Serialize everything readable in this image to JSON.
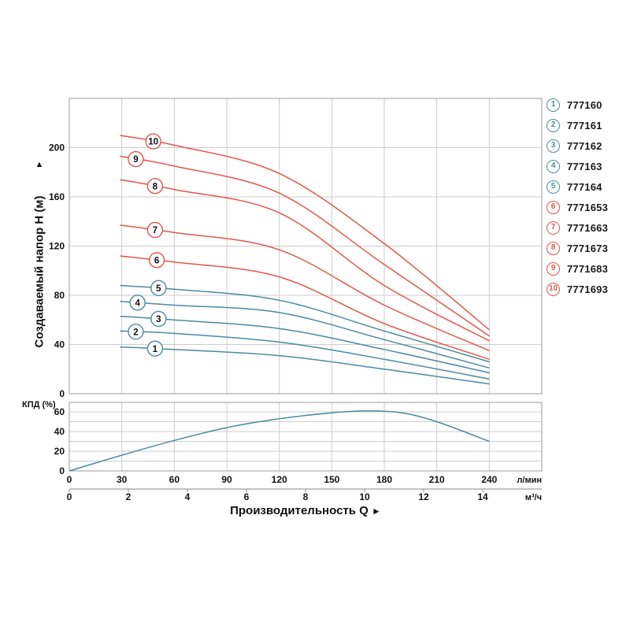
{
  "colors": {
    "blue": "#4A8BA4",
    "red": "#E2574B",
    "grid": "#cccccc",
    "border": "#9b9b9b",
    "text": "#111111"
  },
  "axes": {
    "y_title": "Создаваемый напор H (м)",
    "y_arrow": "▲",
    "x_title": "Производительность Q",
    "x_arrow": "►",
    "efficiency_label": "КПД (%)",
    "unit_lmin": "л/мин",
    "unit_m3h": "м³/ч"
  },
  "legend": {
    "position": "right",
    "items": [
      {
        "num": "1",
        "model": "777160",
        "color": "blue"
      },
      {
        "num": "2",
        "model": "777161",
        "color": "blue"
      },
      {
        "num": "3",
        "model": "777162",
        "color": "blue"
      },
      {
        "num": "4",
        "model": "777163",
        "color": "blue"
      },
      {
        "num": "5",
        "model": "777164",
        "color": "blue"
      },
      {
        "num": "6",
        "model": "7771653",
        "color": "red"
      },
      {
        "num": "7",
        "model": "7771663",
        "color": "red"
      },
      {
        "num": "8",
        "model": "7771673",
        "color": "red"
      },
      {
        "num": "9",
        "model": "7771683",
        "color": "red"
      },
      {
        "num": "10",
        "model": "7771693",
        "color": "red"
      }
    ]
  },
  "chart_data": [
    {
      "type": "line",
      "title": "Pump head curves H(Q)",
      "ylabel": "Создаваемый напор H (м)",
      "xlabel": "Производительность Q",
      "x_units": [
        "л/мин",
        "м³/ч"
      ],
      "xlim_lmin": [
        0,
        270
      ],
      "ylim": [
        0,
        240
      ],
      "grid": true,
      "y_ticks": [
        0,
        40,
        80,
        120,
        160,
        200
      ],
      "y_grid_step": 40,
      "x_grid_step_lmin": 30,
      "x_ticks_lmin": [
        0,
        30,
        60,
        90,
        120,
        150,
        180,
        210,
        240
      ],
      "x_ticks_m3h": [
        0,
        2,
        4,
        6,
        8,
        10,
        12,
        14
      ],
      "legend_position": "right",
      "x_lmin": [
        29,
        60,
        120,
        180,
        240
      ],
      "series": [
        {
          "label": "1",
          "name": "777160",
          "color": "blue",
          "label_q": 49,
          "values": [
            38,
            36,
            31,
            20,
            8
          ]
        },
        {
          "label": "2",
          "name": "777161",
          "color": "blue",
          "label_q": 38,
          "values": [
            51,
            49,
            42,
            28,
            12
          ]
        },
        {
          "label": "3",
          "name": "777162",
          "color": "blue",
          "label_q": 51,
          "values": [
            63,
            60,
            53,
            36,
            17
          ]
        },
        {
          "label": "4",
          "name": "777163",
          "color": "blue",
          "label_q": 39,
          "values": [
            75,
            72,
            66,
            44,
            21
          ]
        },
        {
          "label": "5",
          "name": "777164",
          "color": "blue",
          "label_q": 51,
          "values": [
            88,
            85,
            76,
            51,
            26
          ]
        },
        {
          "label": "6",
          "name": "7771653",
          "color": "red",
          "label_q": 50,
          "values": [
            112,
            107,
            95,
            57,
            28
          ]
        },
        {
          "label": "7",
          "name": "7771663",
          "color": "red",
          "label_q": 49,
          "values": [
            137,
            131,
            117,
            72,
            35
          ]
        },
        {
          "label": "8",
          "name": "7771673",
          "color": "red",
          "label_q": 49,
          "values": [
            174,
            166,
            147,
            88,
            43
          ]
        },
        {
          "label": "9",
          "name": "7771683",
          "color": "red",
          "label_q": 38,
          "values": [
            193,
            185,
            163,
            105,
            47
          ]
        },
        {
          "label": "10",
          "name": "7771693",
          "color": "red",
          "label_q": 48,
          "values": [
            210,
            202,
            179,
            122,
            52
          ]
        }
      ]
    },
    {
      "type": "line",
      "title": "Efficiency curve",
      "ylabel": "КПД (%)",
      "xlim_lmin": [
        0,
        270
      ],
      "ylim": [
        0,
        69.6
      ],
      "grid": true,
      "y_ticks": [
        0,
        20,
        40,
        60
      ],
      "y_grid_step": 10,
      "x_grid_step_lmin": 30,
      "series": [
        {
          "name": "КПД",
          "color": "blue",
          "x_lmin": [
            0,
            30,
            60,
            90,
            120,
            150,
            170,
            190,
            210,
            240
          ],
          "values": [
            0,
            16,
            31,
            44,
            53,
            59,
            61,
            59,
            50,
            30
          ]
        }
      ]
    }
  ]
}
